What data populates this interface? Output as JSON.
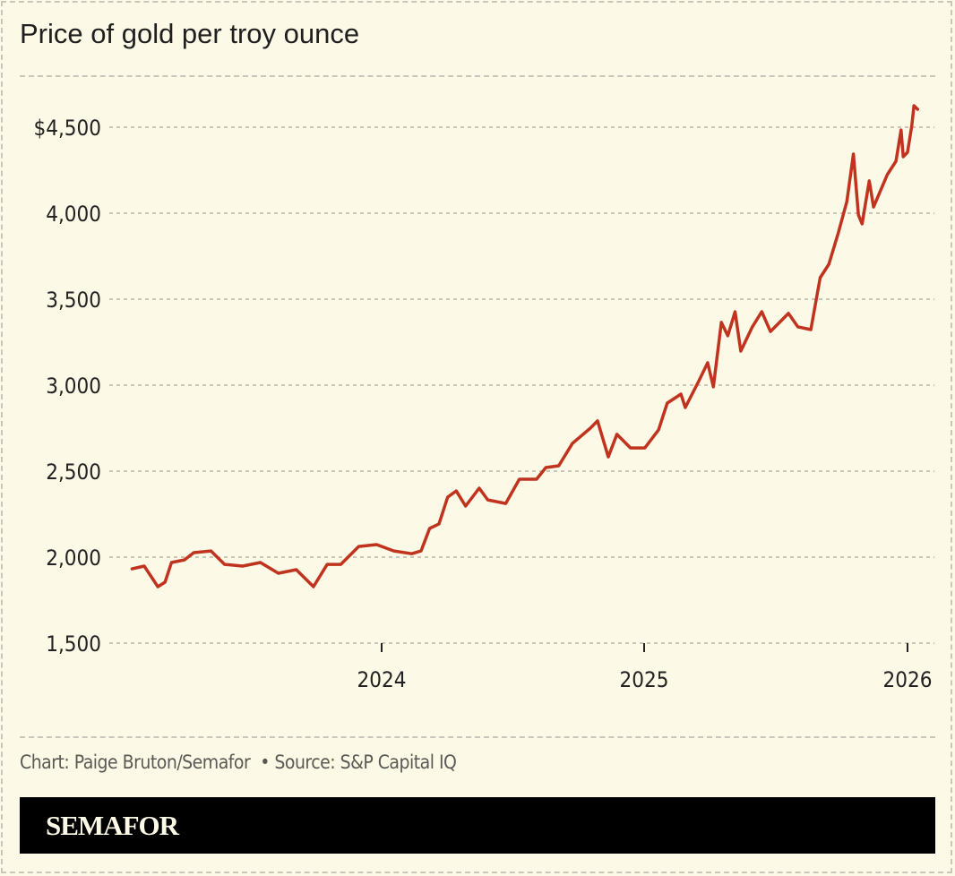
{
  "chart_data": {
    "type": "line",
    "title": "Price of gold per troy ounce",
    "xlabel": "",
    "ylabel": "",
    "ylim": [
      1500,
      4700
    ],
    "xlim": [
      "2023-01-01",
      "2026-01-25"
    ],
    "y_ticks": [
      1500,
      2000,
      2500,
      3000,
      3500,
      4000,
      4500
    ],
    "y_tick_labels": [
      "1,500",
      "2,000",
      "2,500",
      "3,000",
      "3,500",
      "4,000",
      "$4,500"
    ],
    "x_ticks": [
      "2024-01-01",
      "2025-01-01",
      "2026-01-01"
    ],
    "x_tick_labels": [
      "2024",
      "2025",
      "2026"
    ],
    "grid": true,
    "line_color": "#c0341f",
    "series": [
      {
        "x": [
          "2023-01-18",
          "2023-02-04",
          "2023-02-23",
          "2023-03-05",
          "2023-03-14",
          "2023-04-01",
          "2023-04-14",
          "2023-05-08",
          "2023-05-27",
          "2023-06-21",
          "2023-07-16",
          "2023-08-10",
          "2023-09-04",
          "2023-09-28",
          "2023-10-17",
          "2023-11-05",
          "2023-11-30",
          "2023-12-25",
          "2024-01-18",
          "2024-02-12",
          "2024-02-25",
          "2024-03-08",
          "2024-03-21",
          "2024-04-02",
          "2024-04-14",
          "2024-04-27",
          "2024-05-16",
          "2024-05-28",
          "2024-06-22",
          "2024-07-11",
          "2024-08-04",
          "2024-08-17",
          "2024-09-04",
          "2024-09-23",
          "2024-10-18",
          "2024-10-28",
          "2024-11-12",
          "2024-11-24",
          "2024-12-13",
          "2025-01-02",
          "2025-01-21",
          "2025-02-02",
          "2025-02-21",
          "2025-02-27",
          "2025-03-18",
          "2025-03-30",
          "2025-04-07",
          "2025-04-18",
          "2025-04-27",
          "2025-05-07",
          "2025-05-15",
          "2025-05-31",
          "2025-06-13",
          "2025-06-25",
          "2025-07-20",
          "2025-08-02",
          "2025-08-20",
          "2025-09-02",
          "2025-09-14",
          "2025-09-27",
          "2025-10-09",
          "2025-10-18",
          "2025-10-25",
          "2025-10-30",
          "2025-11-09",
          "2025-11-15",
          "2025-12-04",
          "2025-12-16",
          "2025-12-23",
          "2025-12-26",
          "2026-01-01",
          "2026-01-07",
          "2026-01-10",
          "2026-01-15"
        ],
        "values": [
          1932,
          1948,
          1828,
          1854,
          1969,
          1984,
          2026,
          2036,
          1958,
          1948,
          1969,
          1906,
          1927,
          1828,
          1958,
          1958,
          2062,
          2073,
          2036,
          2020,
          2036,
          2167,
          2193,
          2349,
          2385,
          2297,
          2401,
          2333,
          2312,
          2453,
          2453,
          2521,
          2531,
          2661,
          2750,
          2792,
          2583,
          2714,
          2635,
          2635,
          2740,
          2896,
          2948,
          2870,
          3026,
          3130,
          2990,
          3365,
          3287,
          3427,
          3198,
          3339,
          3427,
          3312,
          3417,
          3339,
          3323,
          3625,
          3703,
          3885,
          4068,
          4344,
          3990,
          3938,
          4188,
          4036,
          4224,
          4302,
          4484,
          4328,
          4354,
          4510,
          4625,
          4604
        ]
      }
    ]
  },
  "footer": {
    "credit": "Chart: Paige Bruton/Semafor  • Source: S&P Capital IQ",
    "brand": "SEMAFOR"
  }
}
